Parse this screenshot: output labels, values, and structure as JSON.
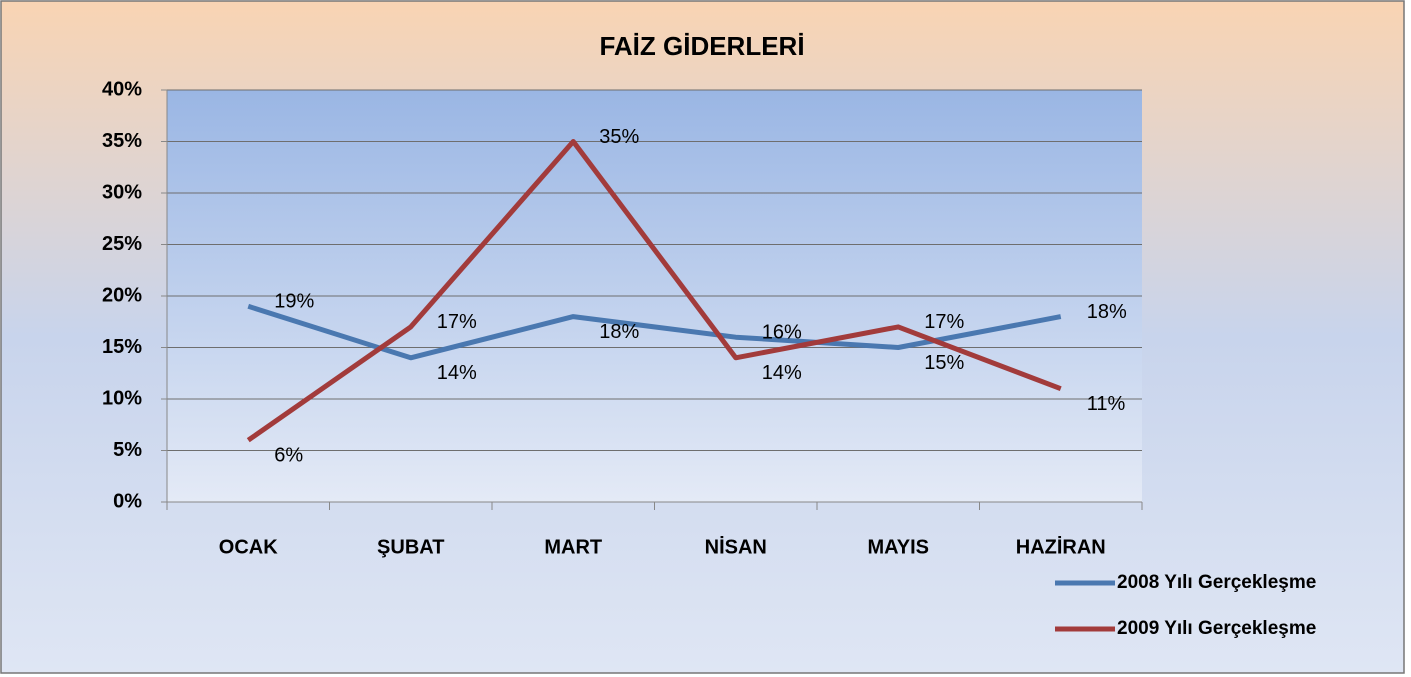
{
  "chart_data": {
    "type": "line",
    "title": "FAİZ GİDERLERİ",
    "categories": [
      "OCAK",
      "ŞUBAT",
      "MART",
      "NİSAN",
      "MAYIS",
      "HAZİRAN"
    ],
    "series": [
      {
        "name": "2008 Yılı Gerçekleşme",
        "color": "#4a78b0",
        "values": [
          19,
          14,
          18,
          16,
          15,
          18
        ],
        "value_labels": [
          "19%",
          "14%",
          "18%",
          "16%",
          "15%",
          "18%"
        ]
      },
      {
        "name": "2009 Yılı Gerçekleşme",
        "color": "#a23b3b",
        "values": [
          6,
          17,
          35,
          14,
          17,
          11
        ],
        "value_labels": [
          "6%",
          "17%",
          "35%",
          "14%",
          "17%",
          "11%"
        ]
      }
    ],
    "ylim": [
      0,
      40
    ],
    "yticks": [
      {
        "value": 0,
        "label": "0%"
      },
      {
        "value": 5,
        "label": "5%"
      },
      {
        "value": 10,
        "label": "10%"
      },
      {
        "value": 15,
        "label": "15%"
      },
      {
        "value": 20,
        "label": "20%"
      },
      {
        "value": 25,
        "label": "25%"
      },
      {
        "value": 30,
        "label": "30%"
      },
      {
        "value": 35,
        "label": "35%"
      },
      {
        "value": 40,
        "label": "40%"
      }
    ],
    "grid": true,
    "legend": "right"
  }
}
